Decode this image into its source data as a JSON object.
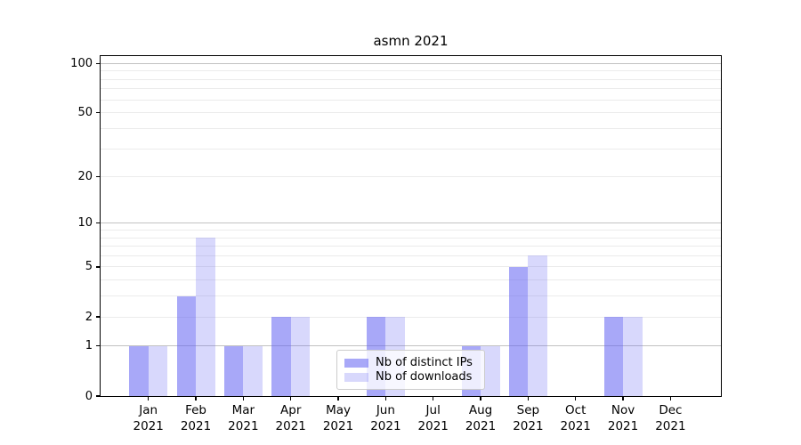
{
  "chart_data": {
    "type": "bar",
    "title": "asmn 2021",
    "categories": [
      "Jan",
      "Feb",
      "Mar",
      "Apr",
      "May",
      "Jun",
      "Jul",
      "Aug",
      "Sep",
      "Oct",
      "Nov",
      "Dec"
    ],
    "year": "2021",
    "series": [
      {
        "name": "Nb of distinct IPs",
        "color": "rgba(100,100,243,0.56)",
        "values": [
          1,
          3,
          1,
          2,
          0,
          2,
          0,
          1,
          5,
          0,
          2,
          0
        ]
      },
      {
        "name": "Nb of downloads",
        "color": "rgba(100,100,243,0.25)",
        "values": [
          1,
          8,
          1,
          2,
          0,
          2,
          0,
          1,
          6,
          0,
          2,
          0
        ]
      }
    ],
    "y_scale": "log10(1+x)",
    "y_ticks": [
      0,
      1,
      2,
      5,
      10,
      20,
      50,
      100
    ],
    "ylim": [
      0,
      110
    ],
    "grid": {
      "major_lines": [
        1,
        10,
        100
      ],
      "minor_lines": [
        2,
        3,
        4,
        5,
        6,
        7,
        8,
        9,
        20,
        30,
        40,
        50,
        60,
        70,
        80,
        90
      ],
      "major_color": "#c2c2c2",
      "minor_color": "#ebebeb"
    },
    "legend_position": "lower center",
    "axis_color": "#000000",
    "background_color": "#ffffff"
  }
}
